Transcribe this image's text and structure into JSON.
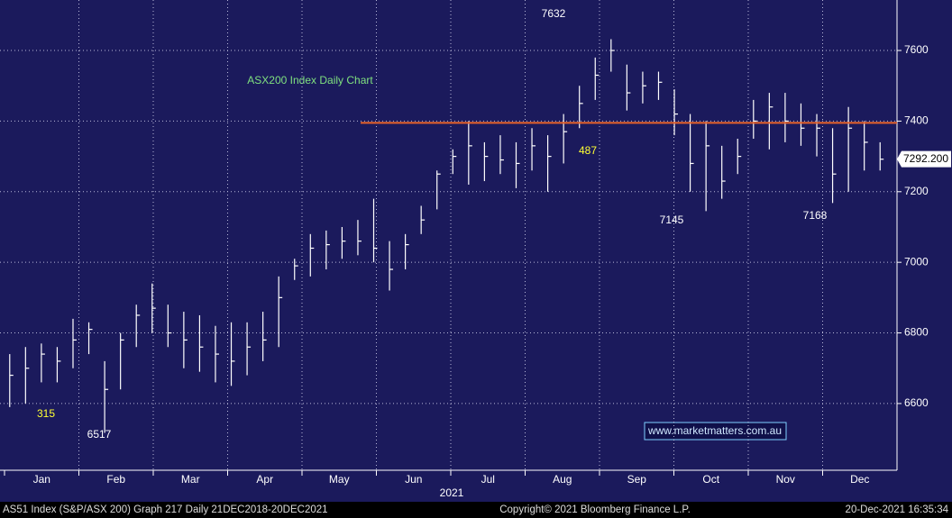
{
  "chart_data": {
    "type": "ohlc",
    "title": "ASX200 Index Daily Chart",
    "watermark": "www.marketmatters.com.au",
    "year_label": "2021",
    "months": [
      "Jan",
      "Feb",
      "Mar",
      "Apr",
      "May",
      "Jun",
      "Jul",
      "Aug",
      "Sep",
      "Oct",
      "Nov",
      "Dec"
    ],
    "series": [
      {
        "name": "high",
        "values": [
          6740,
          6760,
          6770,
          6760,
          6840,
          6830,
          6720,
          6800,
          6880,
          6940,
          6880,
          6860,
          6850,
          6820,
          6830,
          6830,
          6860,
          6960,
          7010,
          7080,
          7090,
          7100,
          7120,
          7180,
          7060,
          7080,
          7160,
          7260,
          7320,
          7400,
          7340,
          7360,
          7340,
          7380,
          7360,
          7420,
          7500,
          7580,
          7632,
          7560,
          7540,
          7540,
          7490,
          7420,
          7400,
          7330,
          7350,
          7460,
          7480,
          7480,
          7450,
          7420,
          7380,
          7440,
          7400,
          7340
        ]
      },
      {
        "name": "low",
        "values": [
          6590,
          6600,
          6660,
          6660,
          6700,
          6740,
          6517,
          6640,
          6760,
          6800,
          6760,
          6700,
          6690,
          6660,
          6650,
          6680,
          6720,
          6760,
          6950,
          6960,
          6980,
          7010,
          7020,
          7000,
          6920,
          6980,
          7080,
          7150,
          7250,
          7220,
          7230,
          7250,
          7210,
          7260,
          7200,
          7280,
          7380,
          7460,
          7540,
          7430,
          7450,
          7460,
          7360,
          7200,
          7145,
          7180,
          7250,
          7350,
          7320,
          7340,
          7330,
          7300,
          7168,
          7200,
          7260,
          7260
        ]
      },
      {
        "name": "close",
        "values": [
          6680,
          6700,
          6740,
          6720,
          6780,
          6810,
          6640,
          6780,
          6850,
          6870,
          6800,
          6780,
          6760,
          6740,
          6720,
          6760,
          6780,
          6900,
          6990,
          7040,
          7050,
          7060,
          7060,
          7040,
          6980,
          7050,
          7120,
          7250,
          7300,
          7330,
          7300,
          7290,
          7280,
          7330,
          7300,
          7370,
          7450,
          7530,
          7600,
          7480,
          7500,
          7510,
          7420,
          7280,
          7330,
          7230,
          7300,
          7400,
          7440,
          7400,
          7380,
          7380,
          7250,
          7380,
          7340,
          7292
        ]
      }
    ],
    "color": "#ffffff",
    "resistance": 7395,
    "resistance_color": "#e8632a",
    "last_price": {
      "value": 7292.2,
      "label": "7292.200"
    },
    "annotations": [
      "7632",
      "315",
      "6517",
      "487",
      "7145",
      "7168"
    ],
    "ylim": [
      6411,
      7743
    ],
    "yticks": [
      6600,
      6800,
      7000,
      7200,
      7400,
      7600
    ],
    "grid": true,
    "footer": [
      "AS51 Index (S&P/ASX 200) Graph 217  Daily 21DEC2018-20DEC2021",
      "Copyright© 2021 Bloomberg Finance L.P.",
      "20-Dec-2021 16:35:34"
    ]
  }
}
